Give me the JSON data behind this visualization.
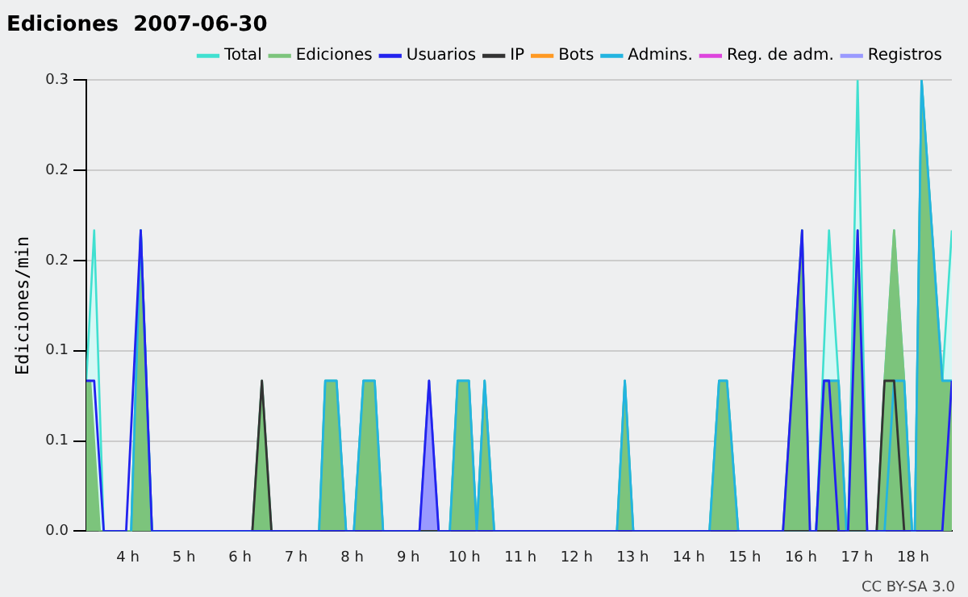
{
  "chart_data": {
    "type": "area",
    "title": "Ediciones  2007-06-30",
    "ylabel": "Ediciones/min",
    "xlim": [
      3.26,
      18.69
    ],
    "ylim": [
      0,
      0.3
    ],
    "xticks": [
      {
        "value": 4,
        "label": "4 h"
      },
      {
        "value": 5,
        "label": "5 h"
      },
      {
        "value": 6,
        "label": "6 h"
      },
      {
        "value": 7,
        "label": "7 h"
      },
      {
        "value": 8,
        "label": "8 h"
      },
      {
        "value": 9,
        "label": "9 h"
      },
      {
        "value": 10,
        "label": "10 h"
      },
      {
        "value": 11,
        "label": "11 h"
      },
      {
        "value": 12,
        "label": "12 h"
      },
      {
        "value": 13,
        "label": "13 h"
      },
      {
        "value": 14,
        "label": "14 h"
      },
      {
        "value": 15,
        "label": "15 h"
      },
      {
        "value": 16,
        "label": "16 h"
      },
      {
        "value": 17,
        "label": "17 h"
      },
      {
        "value": 18,
        "label": "18 h"
      }
    ],
    "yticks": [
      {
        "value": 0,
        "label": "0.0"
      },
      {
        "value": 0.06,
        "label": "0.1"
      },
      {
        "value": 0.12,
        "label": "0.1"
      },
      {
        "value": 0.18,
        "label": "0.2"
      },
      {
        "value": 0.24,
        "label": "0.2"
      },
      {
        "value": 0.3,
        "label": "0.3"
      }
    ],
    "grid": "y",
    "legend": "top right",
    "marker": "none",
    "annotations": [
      "CC BY-SA 3.0"
    ],
    "series": [
      {
        "name": "Total",
        "color": "#40e0d0",
        "x": [
          3.26,
          3.4,
          3.57,
          4.06,
          4.23,
          4.43,
          6.22,
          6.39,
          6.56,
          7.41,
          7.52,
          7.72,
          7.89,
          8.03,
          8.2,
          8.4,
          8.55,
          9.2,
          9.37,
          9.54,
          9.74,
          9.88,
          10.08,
          10.22,
          10.36,
          10.53,
          12.72,
          12.86,
          13.01,
          14.37,
          14.54,
          14.68,
          14.88,
          15.68,
          16.02,
          16.16,
          16.27,
          16.5,
          16.67,
          16.81,
          16.84,
          17.01,
          17.18,
          17.35,
          17.49,
          17.66,
          17.84,
          17.98,
          18.03,
          18.15,
          18.52,
          18.69
        ],
        "values": [
          0.1,
          0.2,
          0,
          0,
          0.2,
          0,
          0,
          0.1,
          0,
          0,
          0.1,
          0.1,
          0,
          0,
          0.1,
          0.1,
          0,
          0,
          0.1,
          0,
          0,
          0.1,
          0.1,
          0,
          0.1,
          0,
          0,
          0.1,
          0,
          0,
          0.1,
          0.1,
          0,
          0,
          0.2,
          0,
          0,
          0.2,
          0.1,
          0,
          0,
          0.3,
          0,
          0,
          0.1,
          0.2,
          0.1,
          0,
          0,
          0.3,
          0.1,
          0.2
        ]
      },
      {
        "name": "Ediciones",
        "type": "area",
        "color": "#7cc47c",
        "x": [
          3.26,
          3.33,
          3.5,
          4.06,
          4.23,
          4.43,
          6.22,
          6.39,
          6.56,
          7.41,
          7.52,
          7.72,
          7.89,
          8.03,
          8.2,
          8.4,
          8.55,
          9.37,
          9.74,
          9.88,
          10.08,
          10.22,
          10.36,
          10.53,
          12.72,
          12.86,
          13.01,
          14.37,
          14.54,
          14.68,
          14.88,
          15.68,
          16.02,
          16.16,
          16.27,
          16.41,
          16.67,
          16.81,
          16.84,
          17.01,
          17.18,
          17.35,
          17.49,
          17.66,
          17.84,
          17.98,
          18.03,
          18.15,
          18.52,
          18.69
        ],
        "values": [
          0.1,
          0.1,
          0,
          0,
          0.2,
          0,
          0,
          0.1,
          0,
          0,
          0.1,
          0.1,
          0,
          0,
          0.1,
          0.1,
          0,
          null,
          0,
          0.1,
          0.1,
          0,
          0.1,
          0,
          0,
          0.1,
          0,
          0,
          0.1,
          0.1,
          0,
          0,
          0.2,
          0,
          0,
          0.1,
          0.1,
          0,
          0,
          0.2,
          0,
          0,
          0.1,
          0.2,
          0.1,
          0,
          0,
          0.3,
          0.1,
          0.1
        ]
      },
      {
        "name": "Usuarios",
        "type": "line",
        "color": "#2222ee",
        "x": [
          3.26,
          3.4,
          3.57,
          3.97,
          4.23,
          4.43,
          9.2,
          9.37,
          9.54,
          15.68,
          16.02,
          16.16,
          16.27,
          16.41,
          16.5,
          16.67,
          16.84,
          17.01,
          17.18,
          18.52,
          18.69
        ],
        "values": [
          0.1,
          0.1,
          0,
          0,
          0.2,
          0,
          0,
          0.1,
          0,
          0,
          0.2,
          0,
          0,
          0.1,
          0.1,
          0,
          0,
          0.2,
          0,
          0,
          0.1
        ]
      },
      {
        "name": "IP",
        "type": "line",
        "color": "#333333",
        "x": [
          6.22,
          6.39,
          6.56,
          17.35,
          17.49,
          17.66,
          17.84
        ],
        "values": [
          0,
          0.1,
          0,
          0,
          0.1,
          0.1,
          0
        ]
      },
      {
        "name": "Bots",
        "type": "line",
        "color": "#ff9922"
      },
      {
        "name": "Admins.",
        "type": "line",
        "color": "#22b4e0",
        "x": [
          4.06,
          4.23,
          4.43,
          7.41,
          7.52,
          7.72,
          7.89,
          8.03,
          8.2,
          8.4,
          8.55,
          9.74,
          9.88,
          10.08,
          10.22,
          10.36,
          10.53,
          12.72,
          12.86,
          13.01,
          14.37,
          14.54,
          14.68,
          14.88,
          16.27,
          16.41,
          16.67,
          16.81,
          17.49,
          17.66,
          17.84,
          17.98,
          18.03,
          18.15,
          18.52,
          18.69
        ],
        "values": [
          0,
          0.2,
          0,
          0,
          0.1,
          0.1,
          0,
          0,
          0.1,
          0.1,
          0,
          0,
          0.1,
          0.1,
          0,
          0.1,
          0,
          0,
          0.1,
          0,
          0,
          0.1,
          0.1,
          0,
          0,
          0.1,
          0.1,
          0,
          0,
          0.1,
          0.1,
          0,
          0,
          0.3,
          0.1,
          0.1
        ]
      },
      {
        "name": "Reg. de adm.",
        "type": "line",
        "color": "#dd44dd"
      },
      {
        "name": "Registros",
        "type": "area",
        "color": "#9999ff",
        "x": [
          9.2,
          9.37,
          9.54
        ],
        "values": [
          0,
          0.1,
          0
        ]
      }
    ]
  }
}
